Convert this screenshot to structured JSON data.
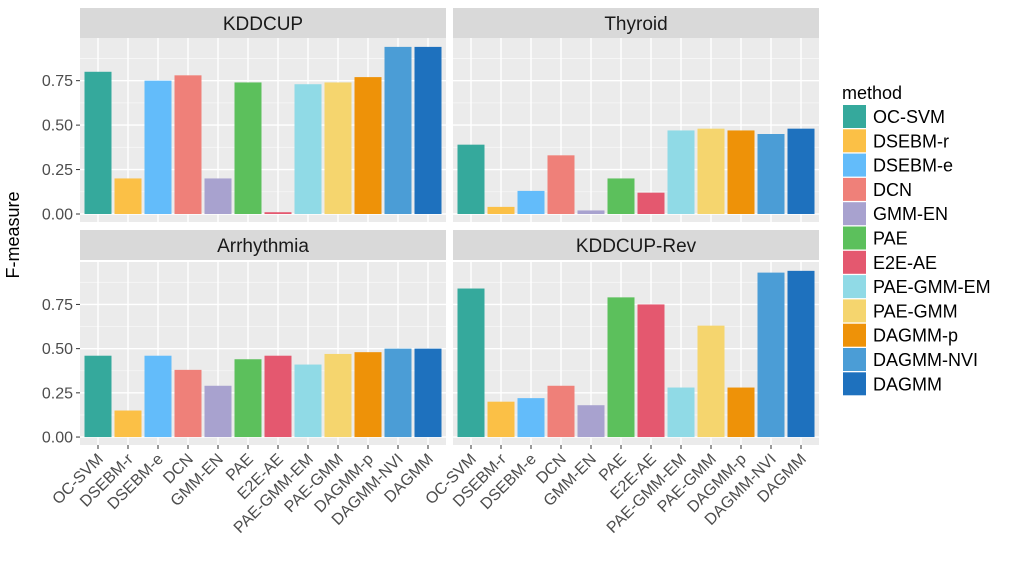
{
  "chart_data": {
    "type": "bar",
    "ylabel": "F-measure",
    "ylim": [
      -0.045,
      0.99
    ],
    "yticks": [
      0.0,
      0.25,
      0.5,
      0.75
    ],
    "ytick_labels": [
      "0.00",
      "0.25",
      "0.50",
      "0.75"
    ],
    "categories": [
      "OC-SVM",
      "DSEBM-r",
      "DSEBM-e",
      "DCN",
      "GMM-EN",
      "PAE",
      "E2E-AE",
      "PAE-GMM-EM",
      "PAE-GMM",
      "DAGMM-p",
      "DAGMM-NVI",
      "DAGMM"
    ],
    "legend": {
      "title": "method",
      "position": "right",
      "colors": [
        "#35A99C",
        "#FBC046",
        "#63BCFA",
        "#EF8079",
        "#A8A2CF",
        "#5CC05C",
        "#E4586F",
        "#90DAE6",
        "#F5D56E",
        "#EE9208",
        "#4B9DD6",
        "#1E71BE"
      ]
    },
    "panels": [
      {
        "title": "KDDCUP",
        "values": [
          0.8,
          0.2,
          0.75,
          0.78,
          0.2,
          0.74,
          0.01,
          0.73,
          0.74,
          0.77,
          0.94,
          0.94
        ]
      },
      {
        "title": "Thyroid",
        "values": [
          0.39,
          0.04,
          0.13,
          0.33,
          0.02,
          0.2,
          0.12,
          0.47,
          0.48,
          0.47,
          0.45,
          0.48
        ]
      },
      {
        "title": "Arrhythmia",
        "values": [
          0.46,
          0.15,
          0.46,
          0.38,
          0.29,
          0.44,
          0.46,
          0.41,
          0.47,
          0.48,
          0.5,
          0.5
        ]
      },
      {
        "title": "KDDCUP-Rev",
        "values": [
          0.84,
          0.2,
          0.22,
          0.29,
          0.18,
          0.79,
          0.75,
          0.28,
          0.63,
          0.28,
          0.93,
          0.94
        ]
      }
    ]
  }
}
